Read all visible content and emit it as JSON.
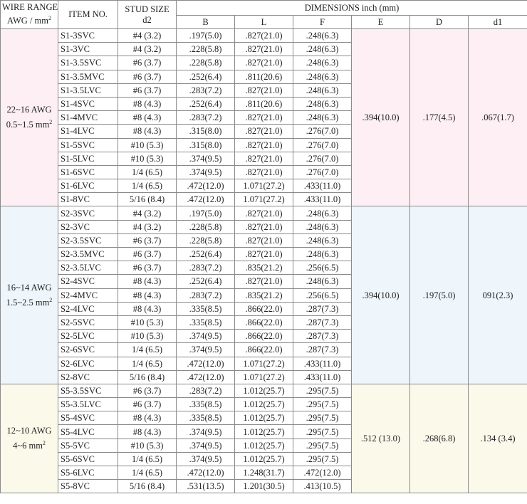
{
  "headers": {
    "wire_range_line1": "WIRE RANGE",
    "wire_range_line2": "AWG / mm",
    "wire_range_sup": "2",
    "item_no": "ITEM NO.",
    "stud_size_line1": "STUD SIZE",
    "stud_size_line2": "d2",
    "dimensions": "DIMENSIONS inch (mm)",
    "cols": [
      "B",
      "L",
      "F",
      "E",
      "D",
      "d1"
    ]
  },
  "groups": [
    {
      "range_line1": "22~16 AWG",
      "range_line2": "0.5~1.5 mm",
      "range_sup": "2",
      "E": ".394(10.0)",
      "D": ".177(4.5)",
      "d1": ".067(1.7)",
      "rows": [
        {
          "item": "S1-3SVC",
          "stud": "#4 (3.2)",
          "B": ".197(5.0)",
          "L": ".827(21.0)",
          "F": ".248(6.3)"
        },
        {
          "item": "S1-3VC",
          "stud": "#4 (3.2)",
          "B": ".228(5.8)",
          "L": ".827(21.0)",
          "F": ".248(6.3)"
        },
        {
          "item": "S1-3.5SVC",
          "stud": "#6 (3.7)",
          "B": ".228(5.8)",
          "L": ".827(21.0)",
          "F": ".248(6.3)"
        },
        {
          "item": "S1-3.5MVC",
          "stud": "#6 (3.7)",
          "B": ".252(6.4)",
          "L": ".811(20.6)",
          "F": ".248(6.3)"
        },
        {
          "item": "S1-3.5LVC",
          "stud": "#6 (3.7)",
          "B": ".283(7.2)",
          "L": ".827(21.0)",
          "F": ".248(6.3)"
        },
        {
          "item": "S1-4SVC",
          "stud": "#8 (4.3)",
          "B": ".252(6.4)",
          "L": ".811(20.6)",
          "F": ".248(6.3)"
        },
        {
          "item": "S1-4MVC",
          "stud": "#8 (4.3)",
          "B": ".283(7.2)",
          "L": ".827(21.0)",
          "F": ".248(6.3)"
        },
        {
          "item": "S1-4LVC",
          "stud": "#8 (4.3)",
          "B": ".315(8.0)",
          "L": ".827(21.0)",
          "F": ".276(7.0)"
        },
        {
          "item": "S1-5SVC",
          "stud": "#10 (5.3)",
          "B": ".315(8.0)",
          "L": ".827(21.0)",
          "F": ".276(7.0)"
        },
        {
          "item": "S1-5LVC",
          "stud": "#10 (5.3)",
          "B": ".374(9.5)",
          "L": ".827(21.0)",
          "F": ".276(7.0)"
        },
        {
          "item": "S1-6SVC",
          "stud": "1/4 (6.5)",
          "B": ".374(9.5)",
          "L": ".827(21.0)",
          "F": ".276(7.0)"
        },
        {
          "item": "S1-6LVC",
          "stud": "1/4 (6.5)",
          "B": ".472(12.0)",
          "L": "1.071(27.2)",
          "F": ".433(11.0)"
        },
        {
          "item": "S1-8VC",
          "stud": "5/16 (8.4)",
          "B": ".472(12.0)",
          "L": "1.071(27.2)",
          "F": ".433(11.0)"
        }
      ]
    },
    {
      "range_line1": "16~14 AWG",
      "range_line2": "1.5~2.5 mm",
      "range_sup": "2",
      "E": ".394(10.0)",
      "D": ".197(5.0)",
      "d1": "091(2.3)",
      "rows": [
        {
          "item": "S2-3SVC",
          "stud": "#4 (3.2)",
          "B": ".197(5.0)",
          "L": ".827(21.0)",
          "F": ".248(6.3)"
        },
        {
          "item": "S2-3VC",
          "stud": "#4 (3.2)",
          "B": ".228(5.8)",
          "L": ".827(21.0)",
          "F": ".248(6.3)"
        },
        {
          "item": "S2-3.5SVC",
          "stud": "#6 (3.7)",
          "B": ".228(5.8)",
          "L": ".827(21.0)",
          "F": ".248(6.3)"
        },
        {
          "item": "S2-3.5MVC",
          "stud": "#6 (3.7)",
          "B": ".252(6.4)",
          "L": ".827(21.0)",
          "F": ".248(6.3)"
        },
        {
          "item": "S2-3.5LVC",
          "stud": "#6 (3.7)",
          "B": ".283(7.2)",
          "L": ".835(21.2)",
          "F": ".256(6.5)"
        },
        {
          "item": "S2-4SVC",
          "stud": "#8 (4.3)",
          "B": ".252(6.4)",
          "L": ".827(21.0)",
          "F": ".248(6.3)"
        },
        {
          "item": "S2-4MVC",
          "stud": "#8 (4.3)",
          "B": ".283(7.2)",
          "L": ".835(21.2)",
          "F": ".256(6.5)"
        },
        {
          "item": "S2-4LVC",
          "stud": "#8 (4.3)",
          "B": ".335(8.5)",
          "L": ".866(22.0)",
          "F": ".287(7.3)"
        },
        {
          "item": "S2-5SVC",
          "stud": "#10 (5.3)",
          "B": ".335(8.5)",
          "L": ".866(22.0)",
          "F": ".287(7.3)"
        },
        {
          "item": "S2-5LVC",
          "stud": "#10 (5.3)",
          "B": ".374(9.5)",
          "L": ".866(22.0)",
          "F": ".287(7.3)"
        },
        {
          "item": "S2-6SVC",
          "stud": "1/4 (6.5)",
          "B": ".374(9.5)",
          "L": ".866(22.0)",
          "F": ".287(7.3)"
        },
        {
          "item": "S2-6LVC",
          "stud": "1/4 (6.5)",
          "B": ".472(12.0)",
          "L": "1.071(27.2)",
          "F": ".433(11.0)"
        },
        {
          "item": "S2-8VC",
          "stud": "5/16 (8.4)",
          "B": ".472(12.0)",
          "L": "1.071(27.2)",
          "F": ".433(11.0)"
        }
      ]
    },
    {
      "range_line1": "12~10 AWG",
      "range_line2": "4~6 mm",
      "range_sup": "2",
      "E": ".512 (13.0)",
      "D": ".268(6.8)",
      "d1": ".134 (3.4)",
      "rows": [
        {
          "item": "S5-3.5SVC",
          "stud": "#6 (3.7)",
          "B": ".283(7.2)",
          "L": "1.012(25.7)",
          "F": ".295(7.5)"
        },
        {
          "item": "S5-3.5LVC",
          "stud": "#6 (3.7)",
          "B": ".335(8.5)",
          "L": "1.012(25.7)",
          "F": ".295(7.5)"
        },
        {
          "item": "S5-4SVC",
          "stud": "#8 (4.3)",
          "B": ".335(8.5)",
          "L": "1.012(25.7)",
          "F": ".295(7.5)"
        },
        {
          "item": "S5-4LVC",
          "stud": "#8 (4.3)",
          "B": ".374(9.5)",
          "L": "1.012(25.7)",
          "F": ".295(7.5)"
        },
        {
          "item": "S5-5VC",
          "stud": "#10 (5.3)",
          "B": ".374(9.5)",
          "L": "1.012(25.7)",
          "F": ".295(7.5)"
        },
        {
          "item": "S5-6SVC",
          "stud": "1/4 (6.5)",
          "B": ".374(9.5)",
          "L": "1.012(25.7)",
          "F": ".295(7.5)"
        },
        {
          "item": "S5-6LVC",
          "stud": "1/4 (6.5)",
          "B": ".472(12.0)",
          "L": "1.248(31.7)",
          "F": ".472(12.0)"
        },
        {
          "item": "S5-8VC",
          "stud": "5/16 (8.4)",
          "B": ".531(13.5)",
          "L": "1.201(30.5)",
          "F": ".413(10.5)"
        }
      ]
    }
  ]
}
